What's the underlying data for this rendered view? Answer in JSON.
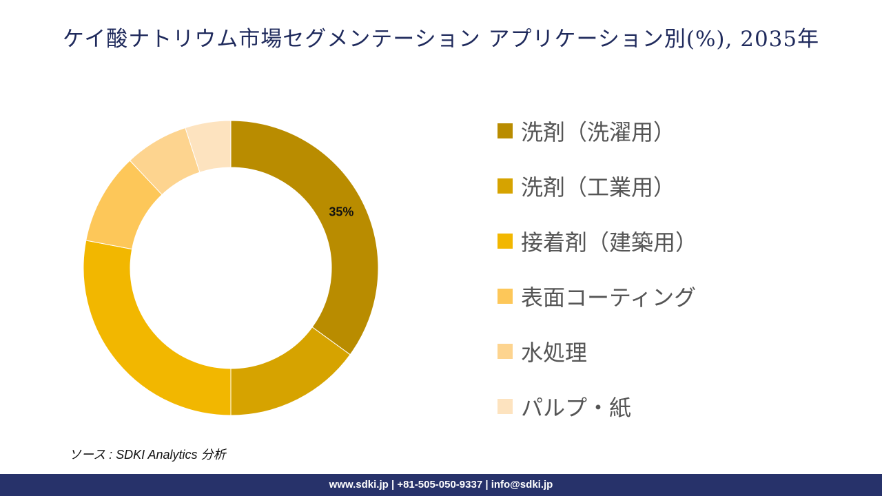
{
  "title": "ケイ酸ナトリウム市場セグメンテーション アプリケーション別(%), 2035年",
  "chart_data": {
    "type": "pie",
    "title": "ケイ酸ナトリウム市場セグメンテーション アプリケーション別(%), 2035年",
    "categories": [
      "洗剤（洗濯用）",
      "洗剤（工業用）",
      "接着剤（建築用）",
      "表面コーティング",
      "水処理",
      "パルプ・紙"
    ],
    "values": [
      35,
      15,
      28,
      10,
      7,
      5
    ],
    "colors": [
      "#b98c00",
      "#d6a300",
      "#f2b700",
      "#fdc759",
      "#fdd48f",
      "#fde3bf"
    ],
    "data_labels": [
      "35%",
      "",
      "",
      "",
      "",
      ""
    ],
    "legend_position": "right",
    "donut": true
  },
  "source": "ソース : SDKI Analytics 分析",
  "footer": "www.sdki.jp | +81-505-050-9337 | info@sdki.jp"
}
